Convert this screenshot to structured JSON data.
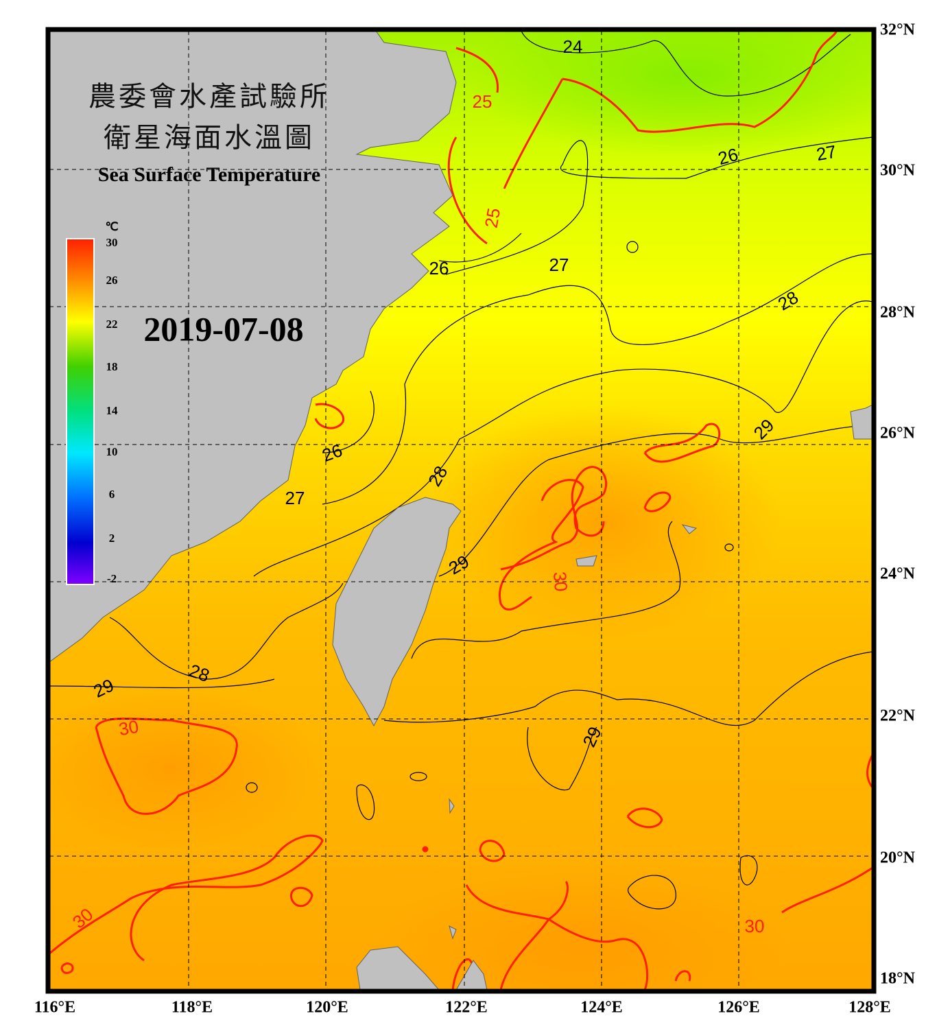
{
  "header": {
    "title_zh_line1": "農委會水產試驗所",
    "title_zh_line2": "衛星海面水溫圖",
    "title_en": "Sea Surface Temperature",
    "date": "2019-07-08"
  },
  "colorbar": {
    "unit": "℃",
    "labels": [
      30,
      26,
      22,
      18,
      14,
      10,
      6,
      2,
      -2
    ]
  },
  "lat_labels": [
    "32°N",
    "30°N",
    "28°N",
    "26°N",
    "24°N",
    "22°N",
    "20°N",
    "18°N"
  ],
  "lon_labels": [
    "116°E",
    "118°E",
    "120°E",
    "122°E",
    "124°E",
    "126°E",
    "128°E"
  ],
  "contour_labels": [
    "24",
    "25",
    "25",
    "26",
    "27",
    "26",
    "27",
    "28",
    "26",
    "27",
    "28",
    "29",
    "29",
    "30",
    "28",
    "29",
    "30",
    "29",
    "30",
    "30"
  ]
}
